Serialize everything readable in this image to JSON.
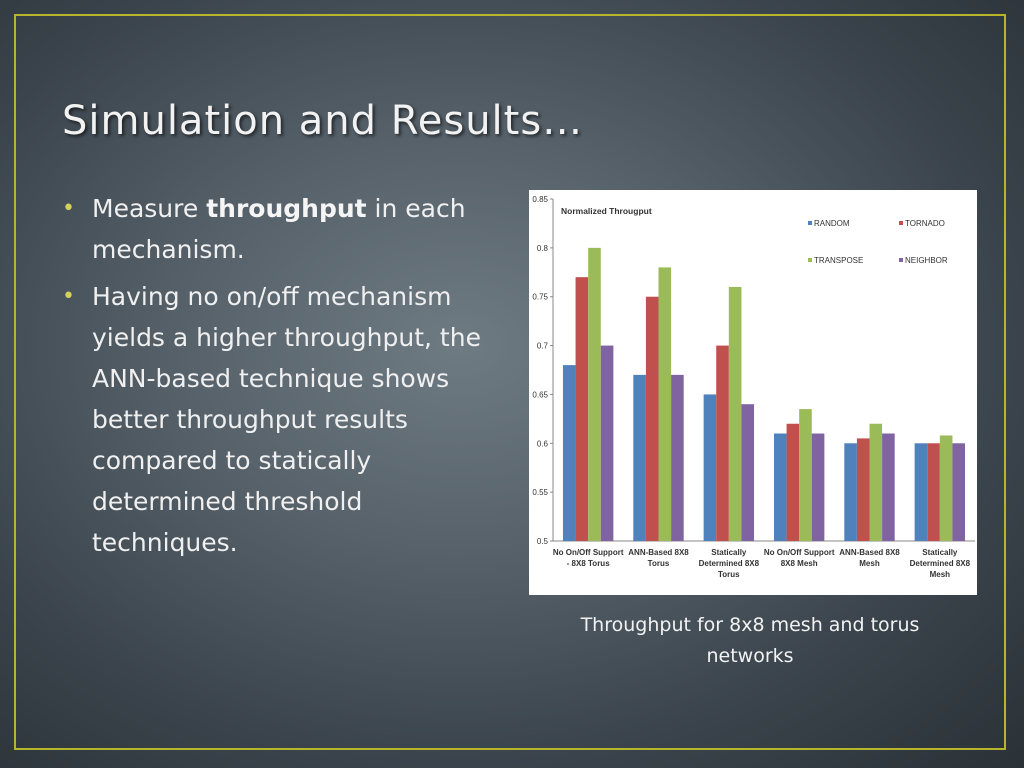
{
  "slide": {
    "title": "Simulation and Results…",
    "bullet1": {
      "pre": "Measure ",
      "bold": "throughput",
      "post": " in each mechanism."
    },
    "bullet2": "Having no on/off mechanism yields a higher throughput, the ANN-based technique shows better throughput results compared to statically determined threshold techniques.",
    "caption": "Throughput for 8x8 mesh and torus networks",
    "colors": {
      "border": "#b8b52a",
      "bullet": "#d4d05a"
    }
  },
  "chart_data": {
    "type": "bar",
    "title": "Normalized Througput",
    "categories": [
      [
        "No On/Off Support",
        "- 8X8 Torus"
      ],
      [
        "ANN-Based 8X8",
        "Torus"
      ],
      [
        "Statically",
        "Determined 8X8",
        "Torus"
      ],
      [
        "No On/Off Support",
        "8X8 Mesh"
      ],
      [
        "ANN-Based 8X8",
        "Mesh"
      ],
      [
        "Statically",
        "Determined 8X8",
        "Mesh"
      ]
    ],
    "series": [
      {
        "name": "RANDOM",
        "color": "#4f81bd",
        "values": [
          0.68,
          0.67,
          0.65,
          0.61,
          0.6,
          0.6
        ]
      },
      {
        "name": "TORNADO",
        "color": "#c0504d",
        "values": [
          0.77,
          0.75,
          0.7,
          0.62,
          0.605,
          0.6
        ]
      },
      {
        "name": "TRANSPOSE",
        "color": "#9bbb59",
        "values": [
          0.8,
          0.78,
          0.76,
          0.635,
          0.62,
          0.608
        ]
      },
      {
        "name": "NEIGHBOR",
        "color": "#8064a2",
        "values": [
          0.7,
          0.67,
          0.64,
          0.61,
          0.61,
          0.6
        ]
      }
    ],
    "ylim": [
      0.5,
      0.85
    ],
    "yticks": [
      "0.5",
      "0.55",
      "0.6",
      "0.65",
      "0.7",
      "0.75",
      "0.8",
      "0.85"
    ],
    "grid": false,
    "legend_position": "top-right"
  }
}
